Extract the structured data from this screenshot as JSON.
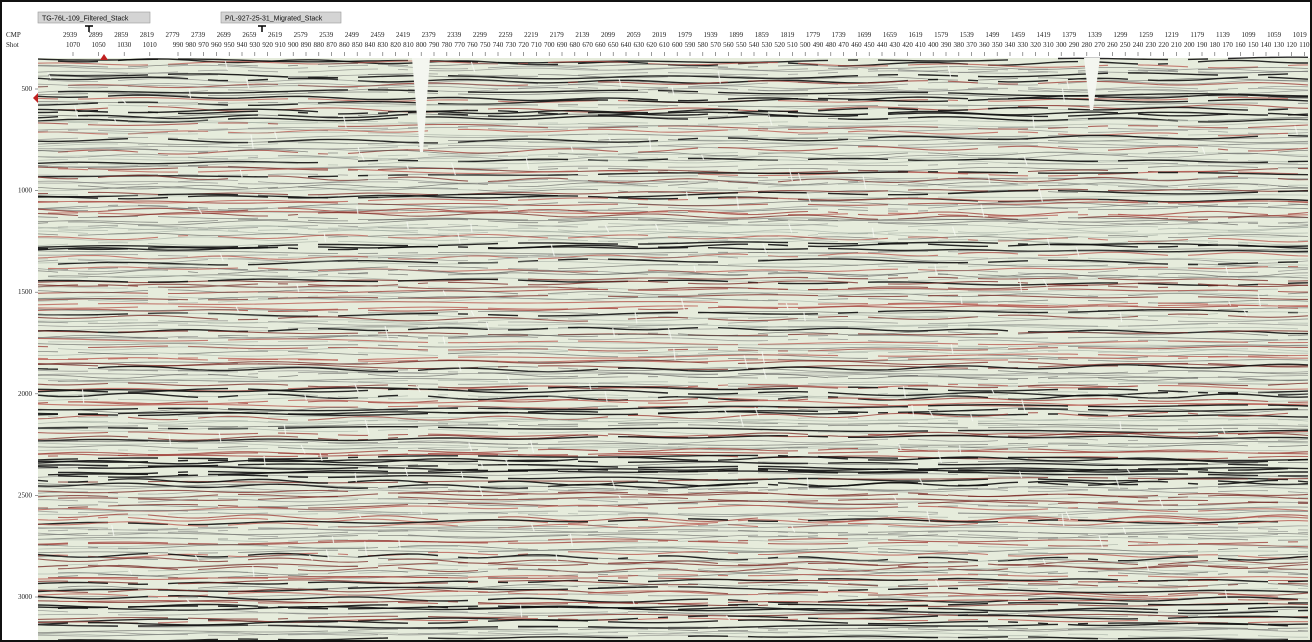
{
  "header": {
    "labels": [
      "TG-76L-109_Filtered_Stack",
      "P/L-927-25-31_Migrated_Stack"
    ]
  },
  "axis": {
    "cmp_title": "CMP",
    "cmp": [
      2939,
      2899,
      2859,
      2819,
      2779,
      2739,
      2699,
      2659,
      2619,
      2579,
      2539,
      2499,
      2459,
      2419,
      2379,
      2339,
      2299,
      2259,
      2219,
      2179,
      2139,
      2099,
      2059,
      2019,
      1979,
      1939,
      1899,
      1859,
      1819,
      1779,
      1739,
      1699,
      1659,
      1619,
      1579,
      1539,
      1499,
      1459,
      1419,
      1379,
      1339,
      1299,
      1259,
      1219,
      1179,
      1139,
      1099,
      1059,
      1019
    ],
    "shot_title": "Shot",
    "shot": [
      1070,
      1050,
      1030,
      1010,
      990,
      980,
      970,
      960,
      950,
      940,
      930,
      920,
      910,
      900,
      890,
      880,
      870,
      860,
      850,
      840,
      830,
      820,
      810,
      800,
      790,
      780,
      770,
      760,
      750,
      740,
      730,
      720,
      710,
      700,
      690,
      680,
      670,
      660,
      650,
      640,
      630,
      620,
      610,
      600,
      590,
      580,
      570,
      560,
      550,
      540,
      530,
      520,
      510,
      500,
      490,
      480,
      470,
      460,
      450,
      440,
      430,
      420,
      410,
      400,
      390,
      380,
      370,
      360,
      350,
      340,
      330,
      320,
      310,
      300,
      290,
      280,
      270,
      260,
      250,
      240,
      230,
      220,
      210,
      200,
      190,
      180,
      170,
      160,
      150,
      140,
      130,
      120,
      110
    ],
    "time": [
      500,
      1000,
      1500,
      2000,
      2500,
      3000
    ]
  }
}
